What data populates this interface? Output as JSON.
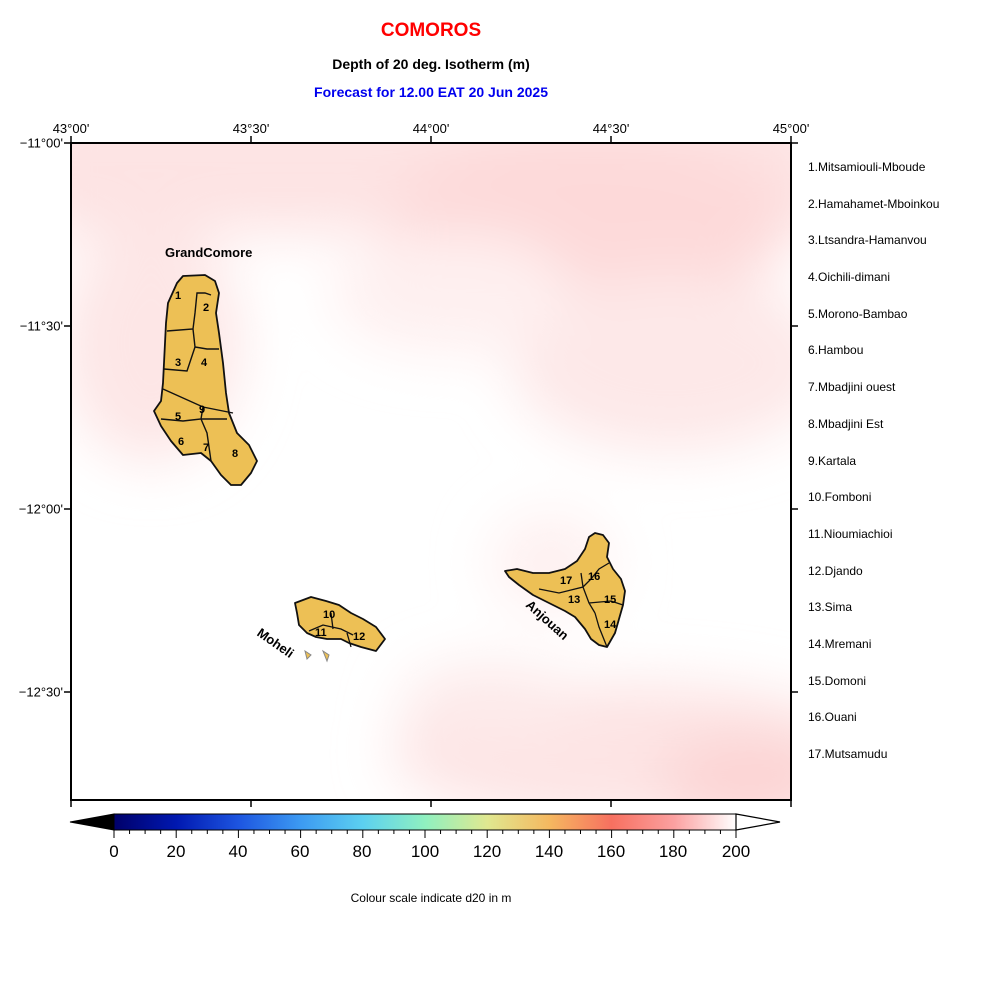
{
  "title": "COMOROS",
  "subtitle": "Depth of 20 deg. Isotherm (m)",
  "forecast": "Forecast for  12.00 EAT 20 Jun 2025",
  "lon_labels": [
    "43°00'",
    "43°30'",
    "44°00'",
    "44°30'",
    "45°00'"
  ],
  "lat_labels": [
    "−11°00'",
    "−11°30'",
    "−12°00'",
    "−12°30'"
  ],
  "islands": {
    "grand_comore": "GrandComore",
    "moheli": "Moheli",
    "anjouan": "Anjouan"
  },
  "regions": [
    "1.Mitsamiouli-Mboude",
    "2.Hamahamet-Mboinkou",
    "3.Ltsandra-Hamanvou",
    "4.Oichili-dimani",
    "5.Morono-Bambao",
    "6.Hambou",
    "7.Mbadjini ouest",
    "8.Mbadjini Est",
    "9.Kartala",
    "10.Fomboni",
    "11.Nioumiachioi",
    "12.Djando",
    "13.Sima",
    "14.Mremani",
    "15.Domoni",
    "16.Ouani",
    "17.Mutsamudu"
  ],
  "region_numbers": [
    "1",
    "2",
    "3",
    "4",
    "5",
    "6",
    "7",
    "8",
    "9",
    "10",
    "11",
    "12",
    "13",
    "14",
    "15",
    "16",
    "17"
  ],
  "colorbar": {
    "ticks": [
      "0",
      "20",
      "40",
      "60",
      "80",
      "100",
      "120",
      "140",
      "160",
      "180",
      "200"
    ],
    "caption": "Colour scale indicate d20 in m",
    "range": [
      0,
      200
    ]
  },
  "colors": {
    "land": "#edc055",
    "title": "#ff0000",
    "forecast": "#0000ee",
    "sea_high": "#fde2e2"
  }
}
